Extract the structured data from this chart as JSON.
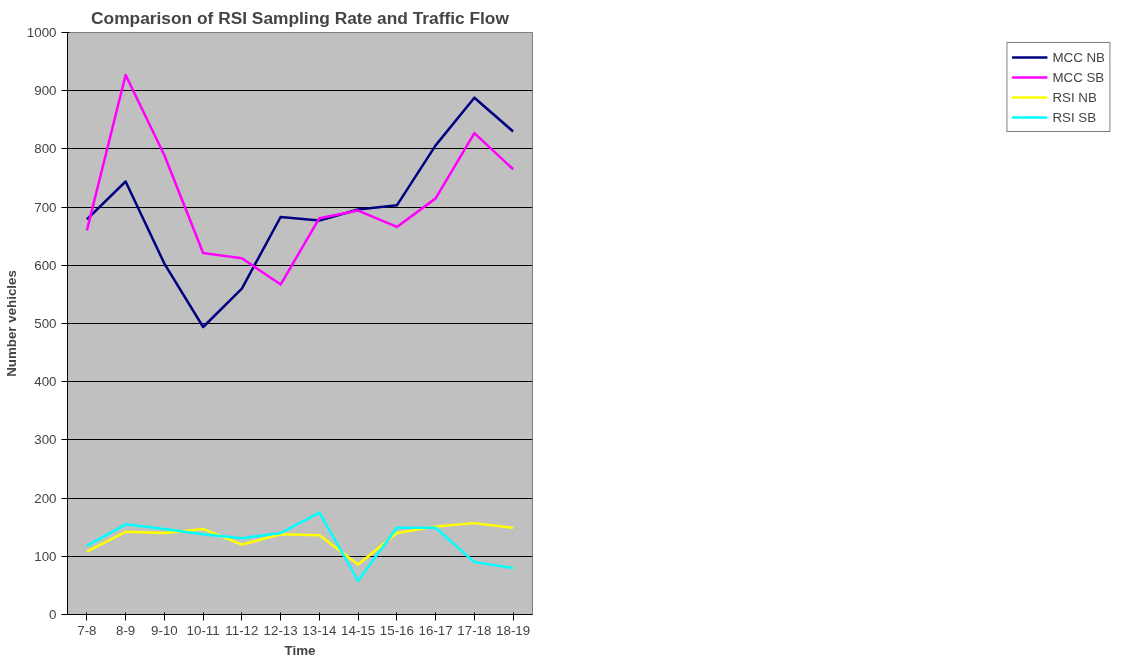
{
  "chart_data": {
    "type": "line",
    "title": "Comparison of RSI Sampling Rate and Traffic Flow",
    "xlabel": "Time",
    "ylabel": "Number vehicles",
    "categories": [
      "7-8",
      "8-9",
      "9-10",
      "10-11",
      "11-12",
      "12-13",
      "13-14",
      "14-15",
      "15-16",
      "16-17",
      "17-18",
      "18-19"
    ],
    "series": [
      {
        "name": "MCC NB",
        "color": "#000080",
        "values": [
          679,
          744,
          603,
          494,
          560,
          683,
          677,
          696,
          703,
          806,
          888,
          830
        ]
      },
      {
        "name": "MCC SB",
        "color": "#ff00ff",
        "values": [
          660,
          927,
          789,
          621,
          612,
          567,
          681,
          694,
          666,
          715,
          827,
          765
        ]
      },
      {
        "name": "RSI NB",
        "color": "#ffff00",
        "values": [
          108,
          142,
          140,
          147,
          120,
          138,
          136,
          86,
          140,
          151,
          157,
          149
        ]
      },
      {
        "name": "RSI SB",
        "color": "#00ffff",
        "values": [
          118,
          155,
          147,
          138,
          131,
          140,
          175,
          58,
          149,
          149,
          90,
          80
        ]
      }
    ],
    "ylim": [
      0,
      1000
    ],
    "yticks": [
      0,
      100,
      200,
      300,
      400,
      500,
      600,
      700,
      800,
      900,
      1000
    ],
    "grid": "y",
    "legend": "right",
    "marker": "none",
    "line_style": "solid"
  }
}
